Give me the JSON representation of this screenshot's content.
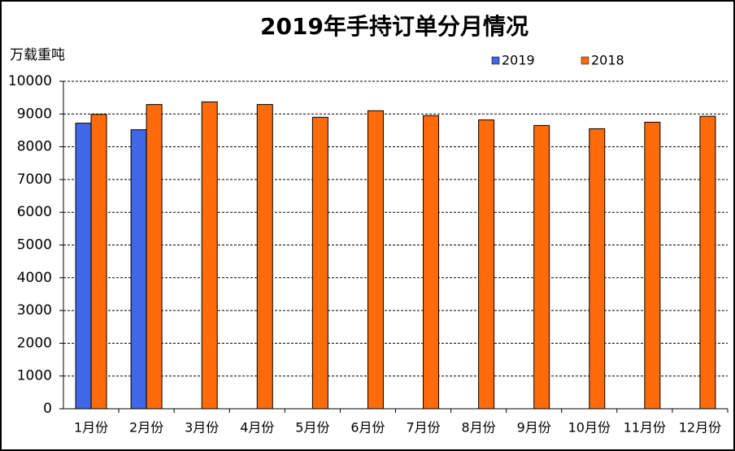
{
  "chart_data": {
    "type": "bar",
    "title": "2019年手持订单分月情况",
    "y_label": "万载重吨",
    "categories": [
      "1月份",
      "2月份",
      "3月份",
      "4月份",
      "5月份",
      "6月份",
      "7月份",
      "8月份",
      "9月份",
      "10月份",
      "11月份",
      "12月份"
    ],
    "series": [
      {
        "name": "2019",
        "color": "#3f67e8",
        "values": [
          8720,
          8520,
          null,
          null,
          null,
          null,
          null,
          null,
          null,
          null,
          null,
          null
        ]
      },
      {
        "name": "2018",
        "color": "#ff6a0a",
        "values": [
          8990,
          9290,
          9370,
          9290,
          8900,
          9100,
          8950,
          8820,
          8650,
          8550,
          8750,
          8930
        ]
      }
    ],
    "ylim": [
      0,
      10000
    ],
    "yticks": [
      0,
      1000,
      2000,
      3000,
      4000,
      5000,
      6000,
      7000,
      8000,
      9000,
      10000
    ],
    "grid": true,
    "legend": "top"
  }
}
